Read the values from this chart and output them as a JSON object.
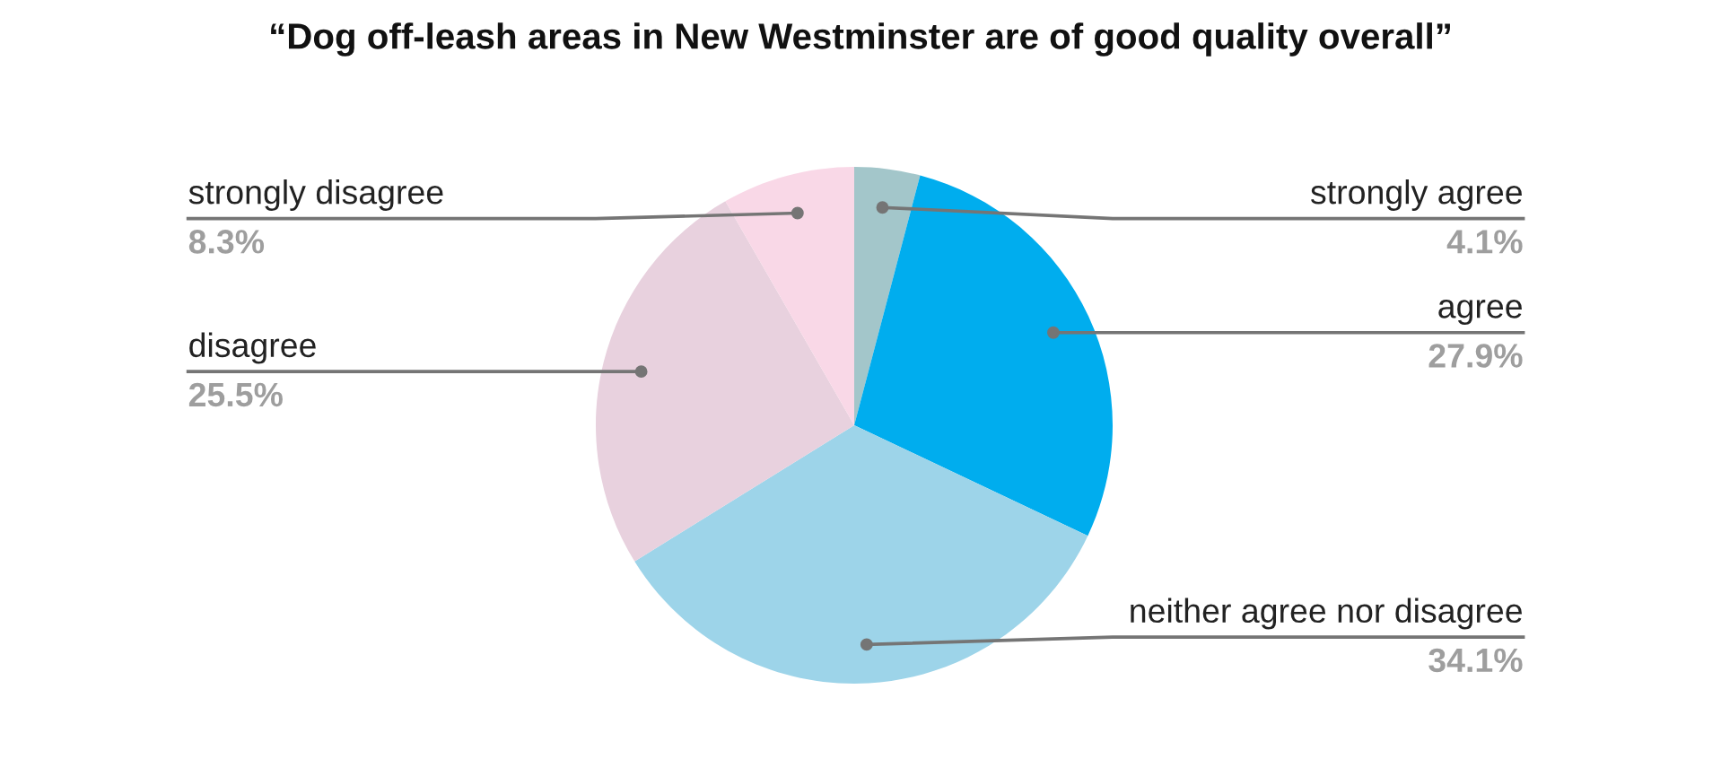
{
  "chart_data": {
    "type": "pie",
    "title": "“Dog off-leash areas in New Westminster are of good quality overall”",
    "categories": [
      "strongly agree",
      "agree",
      "neither agree nor disagree",
      "disagree",
      "strongly disagree"
    ],
    "values": [
      4.1,
      27.9,
      34.1,
      25.5,
      8.3
    ],
    "value_labels": [
      "4.1%",
      "27.9%",
      "34.1%",
      "25.5%",
      "8.3%"
    ],
    "colors": [
      "#a3c6ca",
      "#00adee",
      "#9dd4e9",
      "#e8d1de",
      "#f9d8e7"
    ],
    "legend": false
  }
}
